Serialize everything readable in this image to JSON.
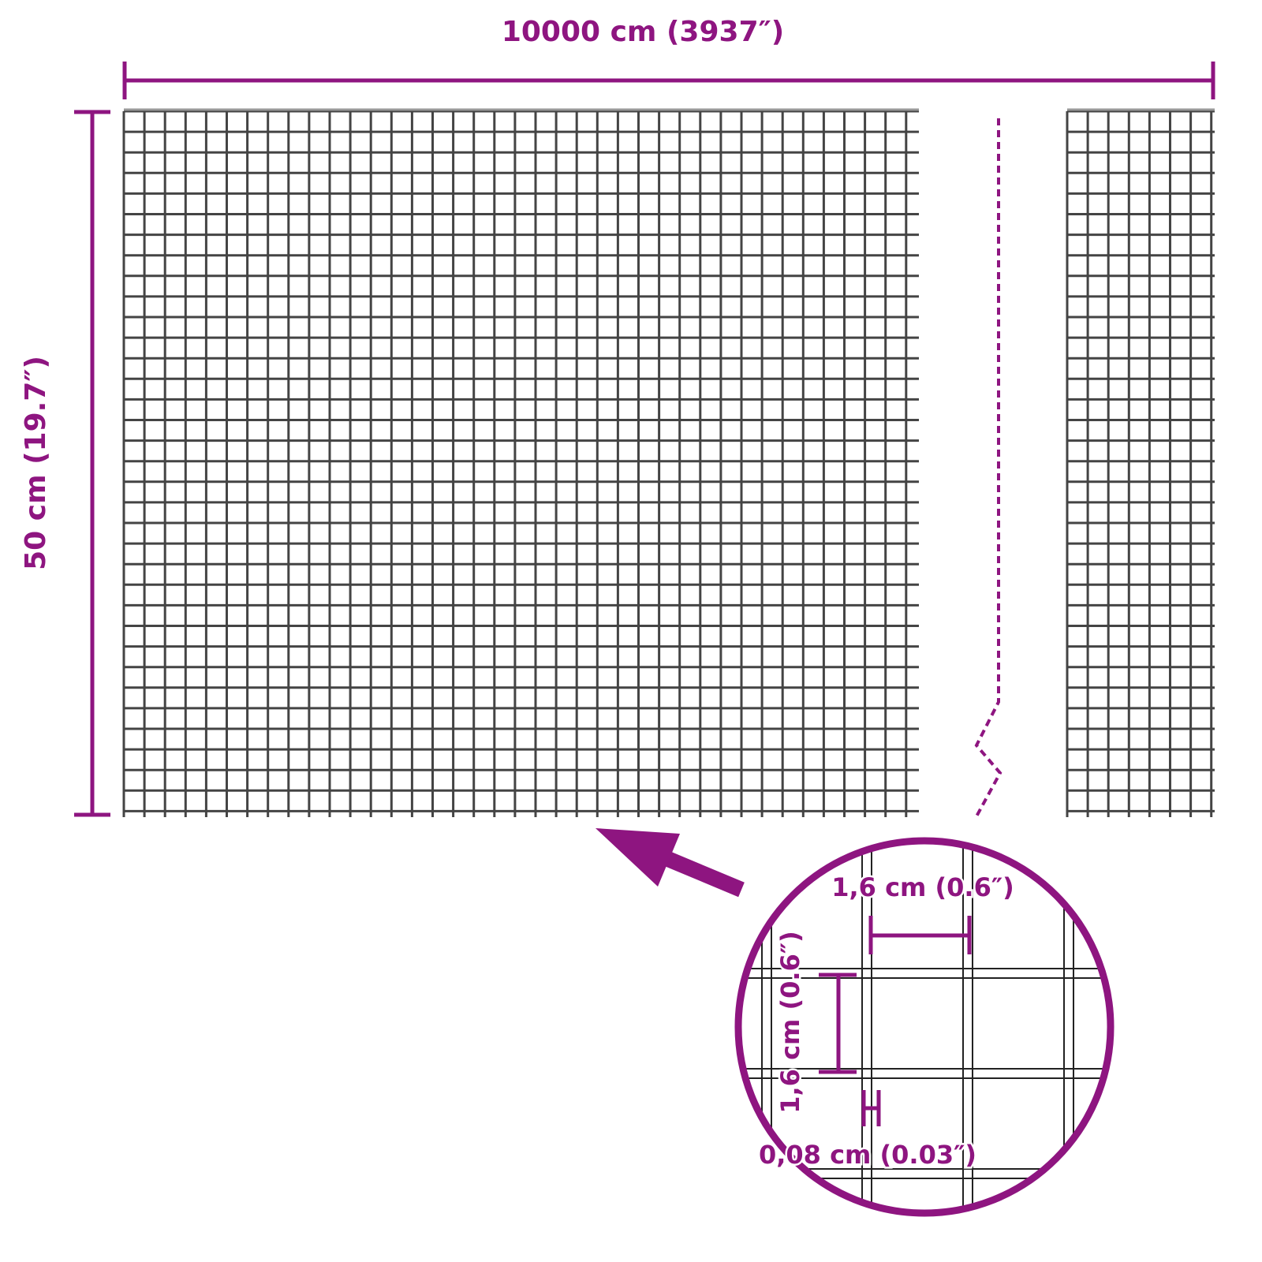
{
  "colors": {
    "accent": "#8e1580",
    "mesh": "#444444"
  },
  "dimensions": {
    "width_label": "10000 cm (3937″)",
    "height_label": "50 cm (19.7″)"
  },
  "detail": {
    "mesh_width_label": "1,6 cm (0.6″)",
    "mesh_height_label": "1,6 cm (0.6″)",
    "wire_thickness_label": "0,08 cm (0.03″)"
  }
}
